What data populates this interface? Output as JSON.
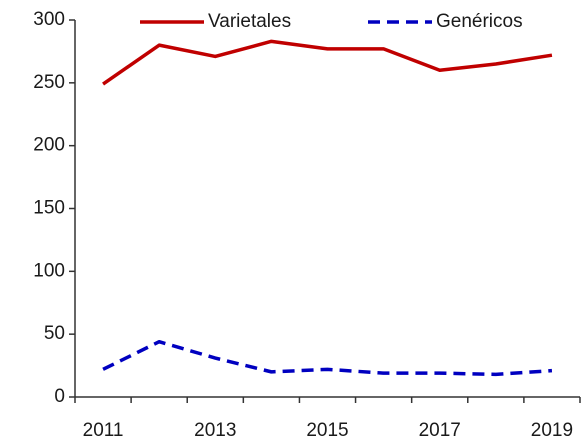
{
  "chart_data": {
    "type": "line",
    "categories": [
      "2011",
      null,
      "2013",
      null,
      "2015",
      null,
      "2017",
      null,
      "2019"
    ],
    "series": [
      {
        "name": "Varietales",
        "color": "#c00000",
        "dash": "solid",
        "values": [
          249,
          280,
          271,
          283,
          277,
          277,
          260,
          265,
          272
        ]
      },
      {
        "name": "Genéricos",
        "color": "#0000c0",
        "dash": "dashed",
        "values": [
          22,
          44,
          31,
          20,
          22,
          19,
          19,
          18,
          21
        ]
      }
    ],
    "ylim": [
      0,
      300
    ],
    "yticks": [
      0,
      50,
      100,
      150,
      200,
      250,
      300
    ],
    "grid": false,
    "legend": "top"
  }
}
